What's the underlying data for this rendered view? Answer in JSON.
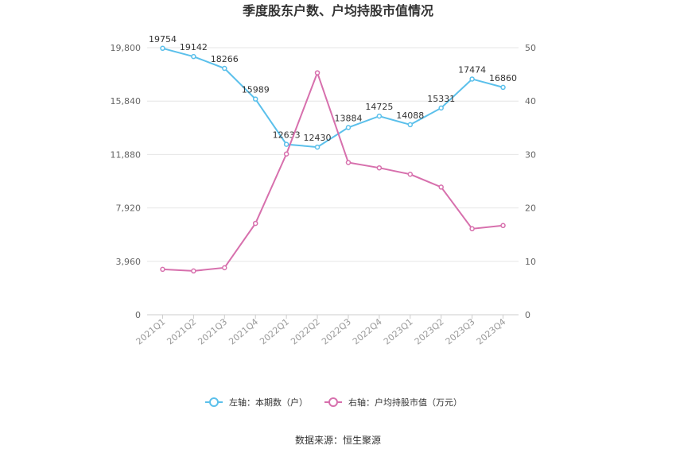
{
  "chart_data": {
    "type": "line",
    "title": "季度股东户数、户均持股市值情况",
    "categories": [
      "2021Q1",
      "2021Q2",
      "2021Q3",
      "2021Q4",
      "2022Q1",
      "2022Q2",
      "2022Q3",
      "2022Q4",
      "2023Q1",
      "2023Q2",
      "2023Q3",
      "2023Q4"
    ],
    "left_axis": {
      "ylim": [
        0,
        19800
      ],
      "ticks": [
        "0",
        "3,960",
        "7,920",
        "11,880",
        "15,840",
        "19,800"
      ],
      "tick_values": [
        0,
        3960,
        7920,
        11880,
        15840,
        19800
      ]
    },
    "right_axis": {
      "ylim": [
        0,
        50
      ],
      "ticks": [
        "0",
        "10",
        "20",
        "30",
        "40",
        "50"
      ],
      "tick_values": [
        0,
        10,
        20,
        30,
        40,
        50
      ]
    },
    "series": [
      {
        "name": "左轴：本期数（户）",
        "axis": "left",
        "color": "#5bc0eb",
        "values": [
          19754,
          19142,
          18266,
          15989,
          12633,
          12430,
          13884,
          14725,
          14088,
          15331,
          17474,
          16860
        ],
        "labels": [
          "19754",
          "19142",
          "18266",
          "15989",
          "12633",
          "12430",
          "13884",
          "14725",
          "14088",
          "15331",
          "17474",
          "16860"
        ]
      },
      {
        "name": "右轴：户均持股市值（万元）",
        "axis": "right",
        "color": "#d770ad",
        "values": [
          8.5,
          8.2,
          8.8,
          17.1,
          30.1,
          45.3,
          28.5,
          27.5,
          26.3,
          23.9,
          16.1,
          16.7
        ]
      }
    ],
    "grid": true,
    "legend_position": "bottom"
  },
  "source": "数据来源：恒生聚源"
}
